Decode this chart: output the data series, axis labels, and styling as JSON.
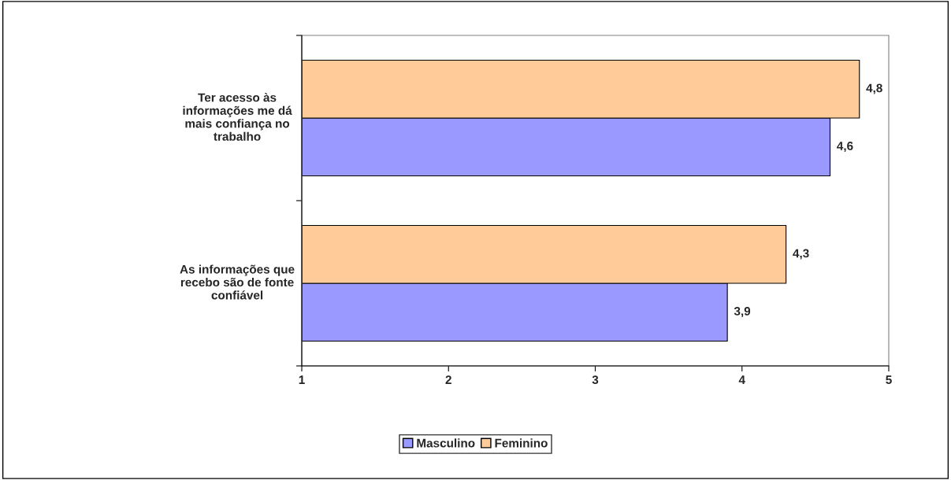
{
  "chart_data": {
    "type": "bar",
    "orientation": "horizontal",
    "categories": [
      "Ter acesso às\ninformações me dá\nmais confiança no\ntrabalho",
      "As informações que\nrecebo são de fonte\nconfiável"
    ],
    "series": [
      {
        "name": "Masculino",
        "color": "#9999ff",
        "values": [
          4.6,
          3.9
        ],
        "value_labels": [
          "4,6",
          "3,9"
        ]
      },
      {
        "name": "Feminino",
        "color": "#ffcc99",
        "values": [
          4.8,
          4.3
        ],
        "value_labels": [
          "4,8",
          "4,3"
        ]
      }
    ],
    "xlim": [
      1,
      5
    ],
    "xticks": [
      1,
      2,
      3,
      4,
      5
    ],
    "grid": false,
    "legend": "bottom"
  }
}
